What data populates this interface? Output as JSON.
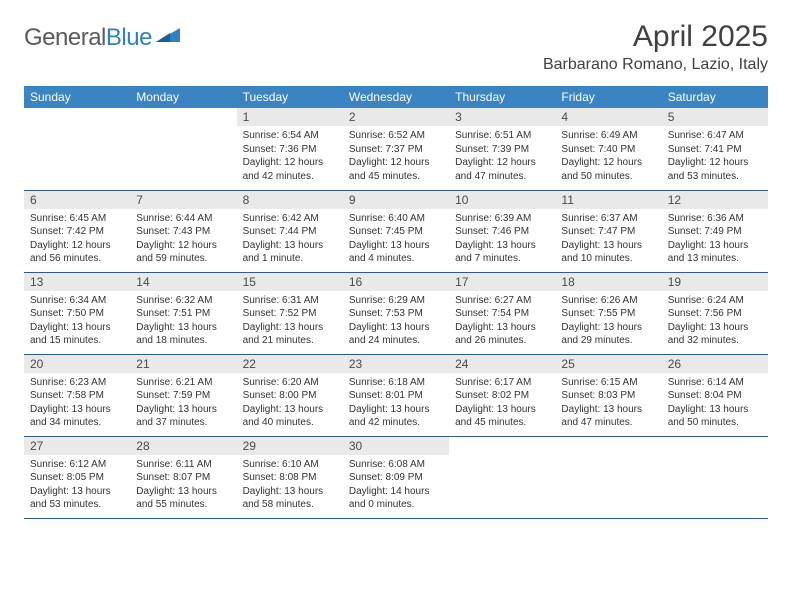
{
  "logo": {
    "part1": "General",
    "part2": "Blue"
  },
  "title": "April 2025",
  "location": "Barbarano Romano, Lazio, Italy",
  "colors": {
    "header_bg": "#3a84c4",
    "header_text": "#ffffff",
    "daynum_bg": "#e9e9e9",
    "row_border": "#2f5b87",
    "logo_gray": "#5a5a5a",
    "logo_blue": "#2f7fc2",
    "text": "#333333"
  },
  "typography": {
    "title_fontsize": 30,
    "location_fontsize": 16,
    "header_fontsize": 12,
    "daynum_fontsize": 12,
    "body_fontsize": 10
  },
  "layout": {
    "columns": 7,
    "rows": 5,
    "first_day_column_index": 2
  },
  "weekdays": [
    "Sunday",
    "Monday",
    "Tuesday",
    "Wednesday",
    "Thursday",
    "Friday",
    "Saturday"
  ],
  "days": [
    {
      "n": 1,
      "sunrise": "6:54 AM",
      "sunset": "7:36 PM",
      "daylight": "12 hours and 42 minutes."
    },
    {
      "n": 2,
      "sunrise": "6:52 AM",
      "sunset": "7:37 PM",
      "daylight": "12 hours and 45 minutes."
    },
    {
      "n": 3,
      "sunrise": "6:51 AM",
      "sunset": "7:39 PM",
      "daylight": "12 hours and 47 minutes."
    },
    {
      "n": 4,
      "sunrise": "6:49 AM",
      "sunset": "7:40 PM",
      "daylight": "12 hours and 50 minutes."
    },
    {
      "n": 5,
      "sunrise": "6:47 AM",
      "sunset": "7:41 PM",
      "daylight": "12 hours and 53 minutes."
    },
    {
      "n": 6,
      "sunrise": "6:45 AM",
      "sunset": "7:42 PM",
      "daylight": "12 hours and 56 minutes."
    },
    {
      "n": 7,
      "sunrise": "6:44 AM",
      "sunset": "7:43 PM",
      "daylight": "12 hours and 59 minutes."
    },
    {
      "n": 8,
      "sunrise": "6:42 AM",
      "sunset": "7:44 PM",
      "daylight": "13 hours and 1 minute."
    },
    {
      "n": 9,
      "sunrise": "6:40 AM",
      "sunset": "7:45 PM",
      "daylight": "13 hours and 4 minutes."
    },
    {
      "n": 10,
      "sunrise": "6:39 AM",
      "sunset": "7:46 PM",
      "daylight": "13 hours and 7 minutes."
    },
    {
      "n": 11,
      "sunrise": "6:37 AM",
      "sunset": "7:47 PM",
      "daylight": "13 hours and 10 minutes."
    },
    {
      "n": 12,
      "sunrise": "6:36 AM",
      "sunset": "7:49 PM",
      "daylight": "13 hours and 13 minutes."
    },
    {
      "n": 13,
      "sunrise": "6:34 AM",
      "sunset": "7:50 PM",
      "daylight": "13 hours and 15 minutes."
    },
    {
      "n": 14,
      "sunrise": "6:32 AM",
      "sunset": "7:51 PM",
      "daylight": "13 hours and 18 minutes."
    },
    {
      "n": 15,
      "sunrise": "6:31 AM",
      "sunset": "7:52 PM",
      "daylight": "13 hours and 21 minutes."
    },
    {
      "n": 16,
      "sunrise": "6:29 AM",
      "sunset": "7:53 PM",
      "daylight": "13 hours and 24 minutes."
    },
    {
      "n": 17,
      "sunrise": "6:27 AM",
      "sunset": "7:54 PM",
      "daylight": "13 hours and 26 minutes."
    },
    {
      "n": 18,
      "sunrise": "6:26 AM",
      "sunset": "7:55 PM",
      "daylight": "13 hours and 29 minutes."
    },
    {
      "n": 19,
      "sunrise": "6:24 AM",
      "sunset": "7:56 PM",
      "daylight": "13 hours and 32 minutes."
    },
    {
      "n": 20,
      "sunrise": "6:23 AM",
      "sunset": "7:58 PM",
      "daylight": "13 hours and 34 minutes."
    },
    {
      "n": 21,
      "sunrise": "6:21 AM",
      "sunset": "7:59 PM",
      "daylight": "13 hours and 37 minutes."
    },
    {
      "n": 22,
      "sunrise": "6:20 AM",
      "sunset": "8:00 PM",
      "daylight": "13 hours and 40 minutes."
    },
    {
      "n": 23,
      "sunrise": "6:18 AM",
      "sunset": "8:01 PM",
      "daylight": "13 hours and 42 minutes."
    },
    {
      "n": 24,
      "sunrise": "6:17 AM",
      "sunset": "8:02 PM",
      "daylight": "13 hours and 45 minutes."
    },
    {
      "n": 25,
      "sunrise": "6:15 AM",
      "sunset": "8:03 PM",
      "daylight": "13 hours and 47 minutes."
    },
    {
      "n": 26,
      "sunrise": "6:14 AM",
      "sunset": "8:04 PM",
      "daylight": "13 hours and 50 minutes."
    },
    {
      "n": 27,
      "sunrise": "6:12 AM",
      "sunset": "8:05 PM",
      "daylight": "13 hours and 53 minutes."
    },
    {
      "n": 28,
      "sunrise": "6:11 AM",
      "sunset": "8:07 PM",
      "daylight": "13 hours and 55 minutes."
    },
    {
      "n": 29,
      "sunrise": "6:10 AM",
      "sunset": "8:08 PM",
      "daylight": "13 hours and 58 minutes."
    },
    {
      "n": 30,
      "sunrise": "6:08 AM",
      "sunset": "8:09 PM",
      "daylight": "14 hours and 0 minutes."
    }
  ],
  "labels": {
    "sunrise": "Sunrise:",
    "sunset": "Sunset:",
    "daylight": "Daylight:"
  }
}
